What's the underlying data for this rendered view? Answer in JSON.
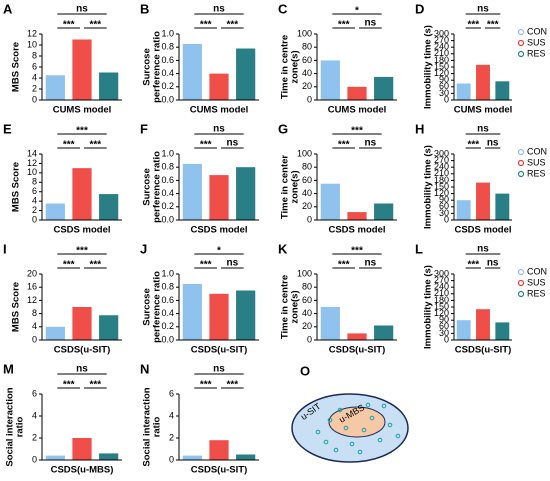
{
  "groups": {
    "names": [
      "CON",
      "SUS",
      "RES"
    ],
    "colors": [
      "#8fc3ee",
      "#ee3b34",
      "#2a7f86"
    ]
  },
  "chart_data": [
    {
      "type": "bar",
      "label": "A",
      "ylabel": [
        "MBS Score"
      ],
      "xlabel": "CUMS model",
      "ylim": [
        0,
        12
      ],
      "yticks": [
        0,
        2,
        4,
        6,
        8,
        10,
        12
      ],
      "values": [
        4.5,
        11,
        5
      ],
      "brackets": [
        {
          "from": 0,
          "to": 1,
          "label": "***"
        },
        {
          "from": 1,
          "to": 2,
          "label": "***"
        },
        {
          "from": 0,
          "to": 2,
          "label": "ns"
        }
      ],
      "legend": false
    },
    {
      "type": "bar",
      "label": "B",
      "ylabel": [
        "Surcose",
        "perference ratio"
      ],
      "xlabel": "CUMS model",
      "ylim": [
        0,
        1
      ],
      "yticks": [
        {
          "value": 0,
          "label": "0.0"
        },
        0.2,
        0.4,
        0.6,
        0.8,
        {
          "value": 1,
          "label": "1.0"
        }
      ],
      "values": [
        0.85,
        0.4,
        0.78
      ],
      "brackets": [
        {
          "from": 0,
          "to": 1,
          "label": "***"
        },
        {
          "from": 1,
          "to": 2,
          "label": "***"
        },
        {
          "from": 0,
          "to": 2,
          "label": "ns"
        }
      ],
      "legend": false
    },
    {
      "type": "bar",
      "label": "C",
      "ylabel": [
        "Time in centre",
        "zone(s)"
      ],
      "xlabel": "CUMS model",
      "ylim": [
        0,
        100
      ],
      "yticks": [
        0,
        20,
        40,
        60,
        80,
        100
      ],
      "values": [
        60,
        20,
        35
      ],
      "brackets": [
        {
          "from": 0,
          "to": 1,
          "label": "***"
        },
        {
          "from": 1,
          "to": 2,
          "label": "ns"
        },
        {
          "from": 0,
          "to": 2,
          "label": "*"
        }
      ],
      "legend": false
    },
    {
      "type": "bar",
      "label": "D",
      "ylabel": [
        "Immobility time (s)"
      ],
      "xlabel": "CUMS model",
      "ylim": [
        0,
        300
      ],
      "yticks": [
        0,
        30,
        60,
        90,
        120,
        150,
        180,
        210,
        240,
        270,
        300
      ],
      "values": [
        75,
        160,
        85
      ],
      "brackets": [
        {
          "from": 0,
          "to": 1,
          "label": "***"
        },
        {
          "from": 1,
          "to": 2,
          "label": "***"
        },
        {
          "from": 0,
          "to": 2,
          "label": "ns"
        }
      ],
      "legend": true
    },
    {
      "type": "bar",
      "label": "E",
      "ylabel": [
        "MBS Score"
      ],
      "xlabel": "CSDS model",
      "ylim": [
        0,
        14
      ],
      "yticks": [
        0,
        2,
        4,
        6,
        8,
        10,
        12,
        14
      ],
      "values": [
        3.5,
        11,
        5.5
      ],
      "brackets": [
        {
          "from": 0,
          "to": 1,
          "label": "***"
        },
        {
          "from": 1,
          "to": 2,
          "label": "***"
        },
        {
          "from": 0,
          "to": 2,
          "label": "***"
        }
      ],
      "legend": false
    },
    {
      "type": "bar",
      "label": "F",
      "ylabel": [
        "Surcose",
        "perference  ratio"
      ],
      "xlabel": "CSDS model",
      "ylim": [
        0,
        1
      ],
      "yticks": [
        {
          "value": 0,
          "label": "0.0"
        },
        0.2,
        0.4,
        0.6,
        0.8,
        {
          "value": 1,
          "label": "1.0"
        }
      ],
      "values": [
        0.85,
        0.68,
        0.8
      ],
      "brackets": [
        {
          "from": 0,
          "to": 1,
          "label": "***"
        },
        {
          "from": 1,
          "to": 2,
          "label": "ns"
        },
        {
          "from": 0,
          "to": 2,
          "label": "ns"
        }
      ],
      "legend": false
    },
    {
      "type": "bar",
      "label": "G",
      "ylabel": [
        "Time in center",
        "zone(s)"
      ],
      "xlabel": "CSDS model",
      "ylim": [
        0,
        100
      ],
      "yticks": [
        0,
        20,
        40,
        60,
        80,
        100
      ],
      "values": [
        55,
        12,
        25
      ],
      "brackets": [
        {
          "from": 0,
          "to": 1,
          "label": "***"
        },
        {
          "from": 1,
          "to": 2,
          "label": "ns"
        },
        {
          "from": 0,
          "to": 2,
          "label": "***"
        }
      ],
      "legend": false
    },
    {
      "type": "bar",
      "label": "H",
      "ylabel": [
        "Immobility time (s)"
      ],
      "xlabel": "CSDS model",
      "ylim": [
        0,
        300
      ],
      "yticks": [
        0,
        30,
        60,
        90,
        120,
        150,
        180,
        210,
        240,
        270,
        300
      ],
      "values": [
        90,
        170,
        120
      ],
      "brackets": [
        {
          "from": 0,
          "to": 1,
          "label": "***"
        },
        {
          "from": 1,
          "to": 2,
          "label": "ns"
        },
        {
          "from": 0,
          "to": 2,
          "label": "ns"
        }
      ],
      "legend": true
    },
    {
      "type": "bar",
      "label": "I",
      "ylabel": [
        "MBS Score"
      ],
      "xlabel": "CSDS(u-SIT)",
      "ylim": [
        0,
        20
      ],
      "yticks": [
        0,
        4,
        8,
        12,
        16,
        20
      ],
      "values": [
        4,
        10,
        7.5
      ],
      "brackets": [
        {
          "from": 0,
          "to": 1,
          "label": "***"
        },
        {
          "from": 1,
          "to": 2,
          "label": "***"
        },
        {
          "from": 0,
          "to": 2,
          "label": "***"
        }
      ],
      "legend": false
    },
    {
      "type": "bar",
      "label": "J",
      "ylabel": [
        "Surcose",
        "perference  ratio"
      ],
      "xlabel": "CSDS(u-SIT)",
      "ylim": [
        0,
        1
      ],
      "yticks": [
        {
          "value": 0,
          "label": "0.0"
        },
        0.2,
        0.4,
        0.6,
        0.8,
        {
          "value": 1,
          "label": "1.0"
        }
      ],
      "values": [
        0.85,
        0.7,
        0.75
      ],
      "brackets": [
        {
          "from": 0,
          "to": 1,
          "label": "***"
        },
        {
          "from": 1,
          "to": 2,
          "label": "ns"
        },
        {
          "from": 0,
          "to": 2,
          "label": "*"
        }
      ],
      "legend": false
    },
    {
      "type": "bar",
      "label": "K",
      "ylabel": [
        "Time in centre",
        "zone(s)"
      ],
      "xlabel": "CSDS(u-SIT)",
      "ylim": [
        0,
        100
      ],
      "yticks": [
        0,
        20,
        40,
        60,
        80,
        100
      ],
      "values": [
        50,
        10,
        22
      ],
      "brackets": [
        {
          "from": 0,
          "to": 1,
          "label": "***"
        },
        {
          "from": 1,
          "to": 2,
          "label": "ns"
        },
        {
          "from": 0,
          "to": 2,
          "label": "***"
        }
      ],
      "legend": false
    },
    {
      "type": "bar",
      "label": "L",
      "ylabel": [
        "Immobility time (s)"
      ],
      "xlabel": "CSDS(u-SIT)",
      "ylim": [
        0,
        300
      ],
      "yticks": [
        0,
        30,
        60,
        90,
        120,
        150,
        180,
        210,
        240,
        270,
        300
      ],
      "values": [
        90,
        140,
        80
      ],
      "brackets": [
        {
          "from": 0,
          "to": 1,
          "label": "***"
        },
        {
          "from": 1,
          "to": 2,
          "label": "ns"
        },
        {
          "from": 0,
          "to": 2,
          "label": "ns"
        }
      ],
      "legend": true
    },
    {
      "type": "bar",
      "label": "M",
      "ylabel": [
        "Social interaction",
        "ratio"
      ],
      "xlabel": "CSDS(u-MBS)",
      "ylim": [
        0,
        6
      ],
      "yticks": [
        0,
        2,
        4,
        6
      ],
      "values": [
        0.4,
        2.0,
        0.6
      ],
      "brackets": [
        {
          "from": 0,
          "to": 1,
          "label": "***"
        },
        {
          "from": 1,
          "to": 2,
          "label": "***"
        },
        {
          "from": 0,
          "to": 2,
          "label": "ns"
        }
      ],
      "legend": false
    },
    {
      "type": "bar",
      "label": "N",
      "ylabel": [
        "Social interaction",
        "ratio"
      ],
      "xlabel": "CSDS(u-SIT)",
      "ylim": [
        0,
        6
      ],
      "yticks": [
        0,
        2,
        4,
        6
      ],
      "values": [
        0.4,
        1.8,
        0.5
      ],
      "brackets": [
        {
          "from": 0,
          "to": 1,
          "label": "***"
        },
        {
          "from": 1,
          "to": 2,
          "label": "***"
        },
        {
          "from": 0,
          "to": 2,
          "label": "ns"
        }
      ],
      "legend": false
    }
  ],
  "diagram": {
    "label": "O",
    "outer": "u-SIT",
    "inner": "u-MBS"
  }
}
